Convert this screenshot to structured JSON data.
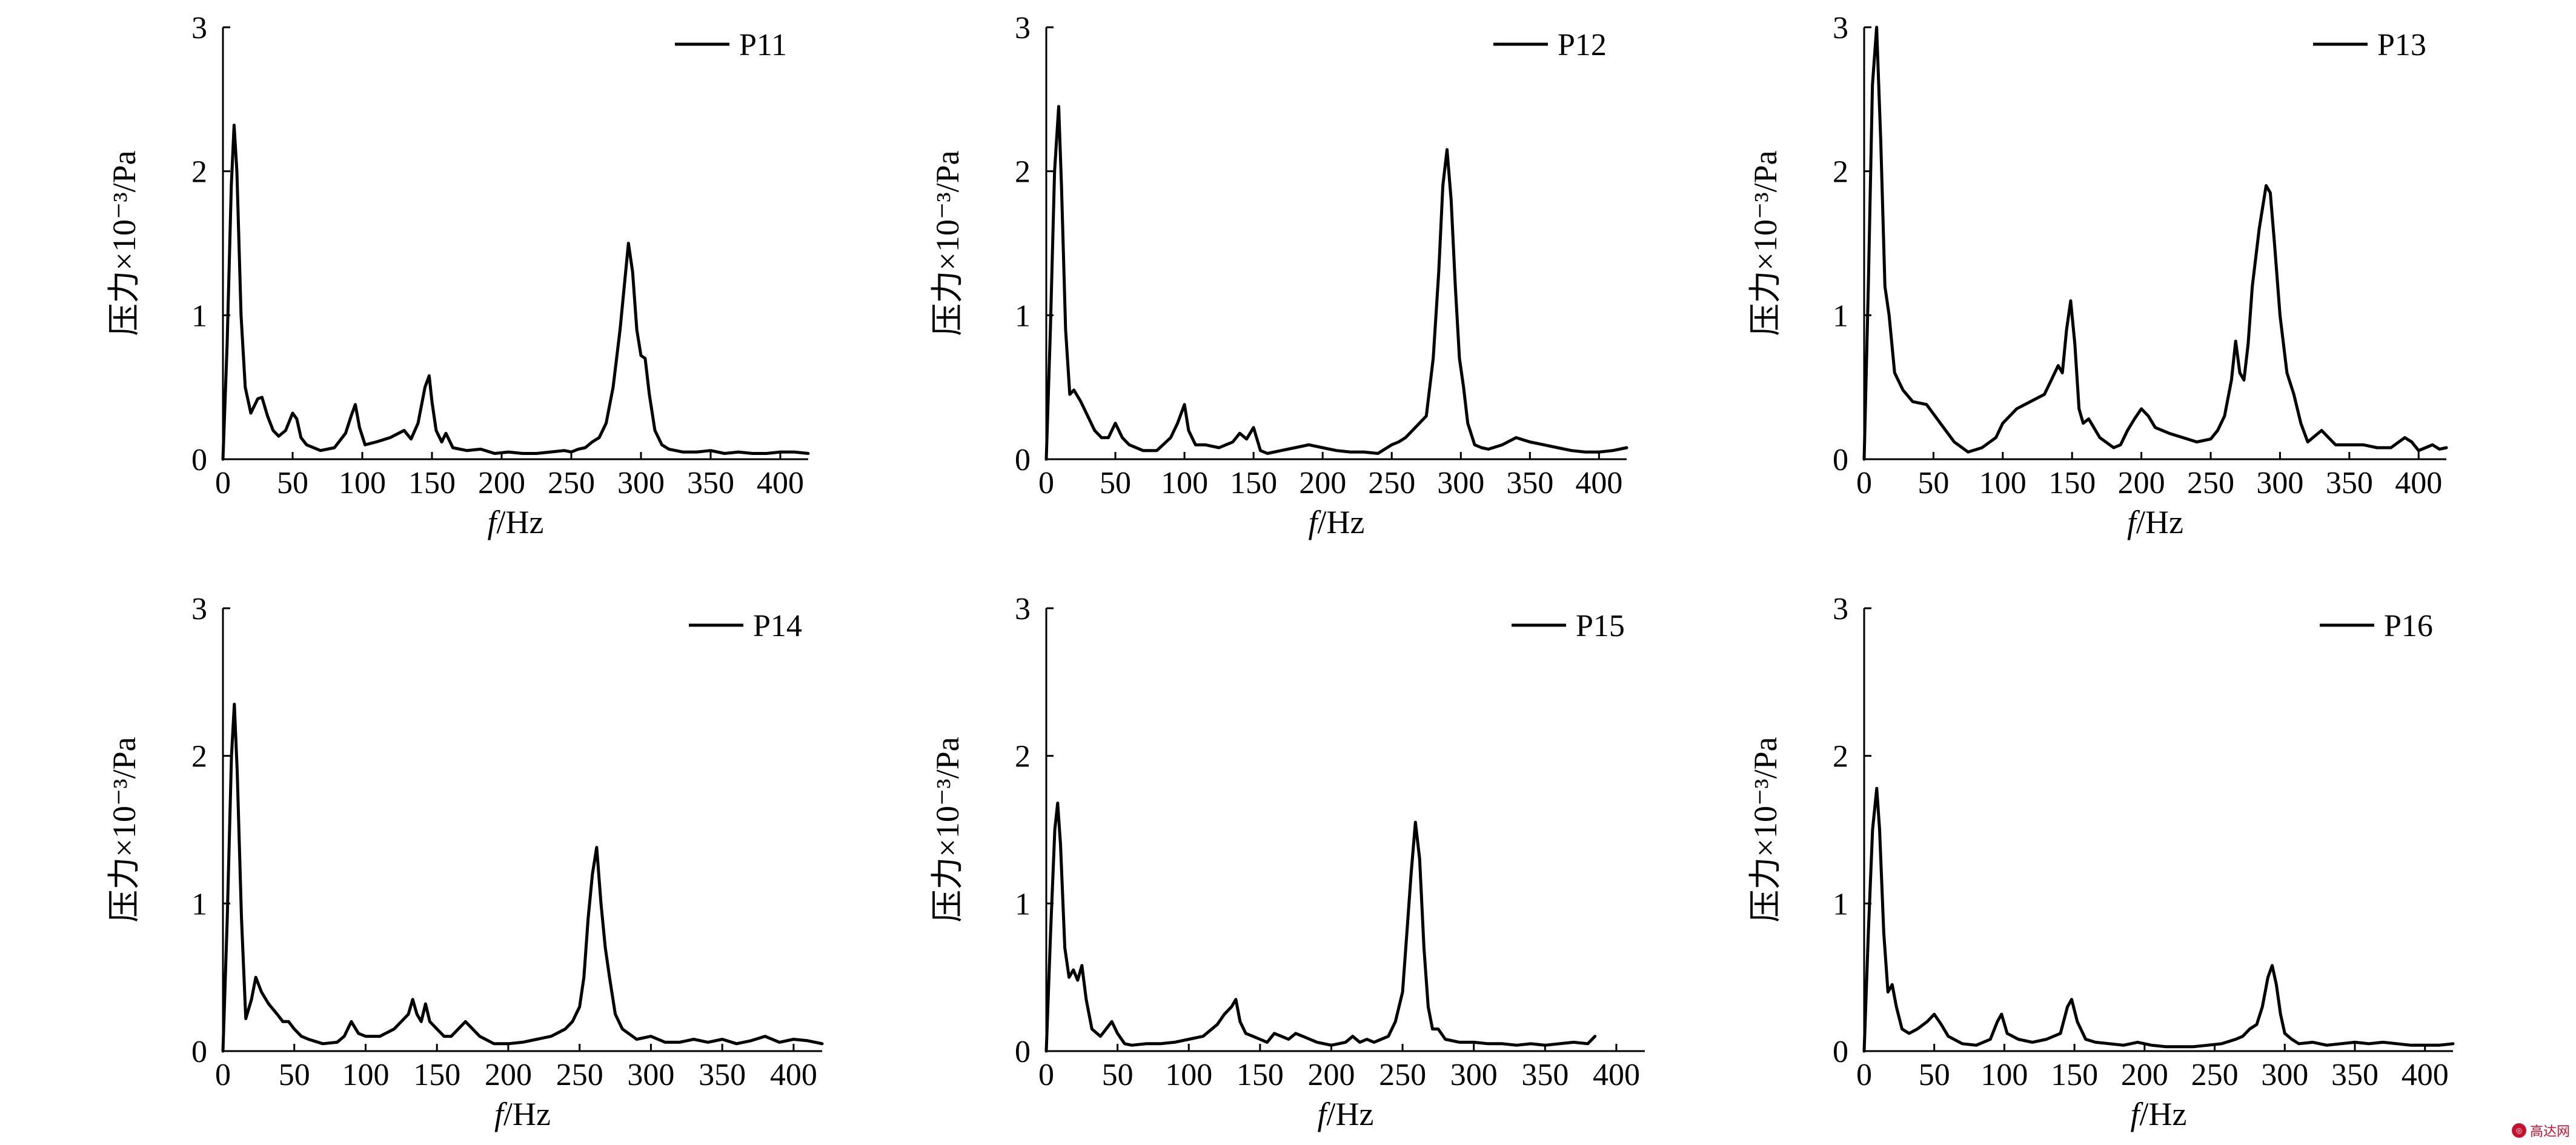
{
  "chart_data": [
    {
      "type": "line",
      "legend": "P11",
      "xlabel_italic": "f",
      "xlabel_rest": "/Hz",
      "ylabel": "压力×10⁻³/Pa",
      "xlim": [
        0,
        420
      ],
      "ylim": [
        0,
        3
      ],
      "xticks": [
        0,
        50,
        100,
        150,
        200,
        250,
        300,
        350,
        400
      ],
      "yticks": [
        0,
        1,
        2,
        3
      ],
      "series": [
        {
          "x": [
            0,
            3,
            6,
            8,
            10,
            13,
            16,
            20,
            25,
            28,
            32,
            36,
            40,
            45,
            50,
            53,
            56,
            60,
            70,
            80,
            88,
            92,
            95,
            98,
            102,
            110,
            120,
            130,
            135,
            140,
            145,
            148,
            150,
            153,
            157,
            160,
            165,
            175,
            185,
            195,
            205,
            215,
            225,
            235,
            245,
            250,
            255,
            260,
            265,
            270,
            275,
            280,
            285,
            288,
            291,
            294,
            297,
            300,
            303,
            306,
            310,
            315,
            320,
            330,
            340,
            350,
            360,
            370,
            380,
            390,
            400,
            410,
            420
          ],
          "y": [
            0,
            0.8,
            1.9,
            2.32,
            2.0,
            1.0,
            0.5,
            0.32,
            0.42,
            0.43,
            0.3,
            0.2,
            0.16,
            0.2,
            0.32,
            0.28,
            0.15,
            0.1,
            0.06,
            0.08,
            0.18,
            0.3,
            0.38,
            0.22,
            0.1,
            0.12,
            0.15,
            0.2,
            0.14,
            0.25,
            0.5,
            0.58,
            0.4,
            0.2,
            0.12,
            0.18,
            0.08,
            0.06,
            0.07,
            0.04,
            0.05,
            0.04,
            0.04,
            0.05,
            0.06,
            0.05,
            0.07,
            0.08,
            0.12,
            0.15,
            0.25,
            0.5,
            0.9,
            1.2,
            1.5,
            1.3,
            0.9,
            0.72,
            0.7,
            0.45,
            0.2,
            0.1,
            0.07,
            0.05,
            0.05,
            0.06,
            0.04,
            0.05,
            0.04,
            0.04,
            0.05,
            0.05,
            0.04
          ]
        }
      ]
    },
    {
      "type": "line",
      "legend": "P12",
      "xlabel_italic": "f",
      "xlabel_rest": "/Hz",
      "ylabel": "压力×10⁻³/Pa",
      "xlim": [
        0,
        420
      ],
      "ylim": [
        0,
        3
      ],
      "xticks": [
        0,
        50,
        100,
        150,
        200,
        250,
        300,
        350,
        400
      ],
      "yticks": [
        0,
        1,
        2,
        3
      ],
      "series": [
        {
          "x": [
            0,
            3,
            6,
            9,
            11,
            14,
            17,
            20,
            25,
            30,
            35,
            40,
            45,
            50,
            55,
            60,
            70,
            80,
            90,
            95,
            100,
            103,
            108,
            115,
            125,
            135,
            140,
            145,
            150,
            155,
            160,
            170,
            180,
            190,
            200,
            210,
            220,
            230,
            240,
            250,
            255,
            260,
            265,
            270,
            275,
            280,
            284,
            287,
            290,
            293,
            296,
            299,
            302,
            305,
            310,
            315,
            320,
            330,
            340,
            350,
            360,
            370,
            380,
            390,
            400,
            410,
            420
          ],
          "y": [
            0,
            0.9,
            2.0,
            2.45,
            1.9,
            0.9,
            0.45,
            0.48,
            0.4,
            0.3,
            0.2,
            0.15,
            0.15,
            0.25,
            0.15,
            0.1,
            0.06,
            0.06,
            0.15,
            0.25,
            0.38,
            0.2,
            0.1,
            0.1,
            0.08,
            0.12,
            0.18,
            0.14,
            0.22,
            0.06,
            0.04,
            0.06,
            0.08,
            0.1,
            0.08,
            0.06,
            0.05,
            0.05,
            0.04,
            0.1,
            0.12,
            0.15,
            0.2,
            0.25,
            0.3,
            0.7,
            1.3,
            1.9,
            2.15,
            1.8,
            1.2,
            0.7,
            0.5,
            0.25,
            0.1,
            0.08,
            0.07,
            0.1,
            0.15,
            0.12,
            0.1,
            0.08,
            0.06,
            0.05,
            0.05,
            0.06,
            0.08
          ]
        }
      ]
    },
    {
      "type": "line",
      "legend": "P13",
      "xlabel_italic": "f",
      "xlabel_rest": "/Hz",
      "ylabel": "压力×10⁻³/Pa",
      "xlim": [
        0,
        420
      ],
      "ylim": [
        0,
        3
      ],
      "xticks": [
        0,
        50,
        100,
        150,
        200,
        250,
        300,
        350,
        400
      ],
      "yticks": [
        0,
        1,
        2,
        3
      ],
      "series": [
        {
          "x": [
            0,
            3,
            6,
            9,
            12,
            15,
            18,
            22,
            28,
            35,
            45,
            55,
            65,
            75,
            85,
            95,
            100,
            105,
            110,
            120,
            130,
            135,
            140,
            143,
            146,
            149,
            152,
            155,
            158,
            162,
            170,
            180,
            185,
            190,
            195,
            200,
            205,
            210,
            220,
            230,
            240,
            250,
            255,
            260,
            265,
            268,
            271,
            274,
            277,
            280,
            285,
            290,
            293,
            296,
            300,
            305,
            310,
            315,
            320,
            330,
            340,
            350,
            360,
            370,
            380,
            390,
            395,
            400,
            405,
            410,
            415,
            420
          ],
          "y": [
            0,
            1.2,
            2.6,
            3.0,
            2.2,
            1.2,
            1.0,
            0.6,
            0.48,
            0.4,
            0.38,
            0.25,
            0.12,
            0.05,
            0.08,
            0.15,
            0.25,
            0.3,
            0.35,
            0.4,
            0.45,
            0.55,
            0.65,
            0.6,
            0.9,
            1.1,
            0.8,
            0.35,
            0.25,
            0.28,
            0.15,
            0.08,
            0.1,
            0.2,
            0.28,
            0.35,
            0.3,
            0.22,
            0.18,
            0.15,
            0.12,
            0.14,
            0.2,
            0.3,
            0.55,
            0.82,
            0.6,
            0.55,
            0.8,
            1.2,
            1.6,
            1.9,
            1.85,
            1.5,
            1.0,
            0.6,
            0.45,
            0.25,
            0.12,
            0.2,
            0.1,
            0.1,
            0.1,
            0.08,
            0.08,
            0.15,
            0.12,
            0.06,
            0.08,
            0.1,
            0.07,
            0.08
          ]
        }
      ]
    },
    {
      "type": "line",
      "legend": "P14",
      "xlabel_italic": "f",
      "xlabel_rest": "/Hz",
      "ylabel": "压力×10⁻³/Pa",
      "xlim": [
        0,
        420
      ],
      "ylim": [
        0,
        3
      ],
      "xticks": [
        0,
        50,
        100,
        150,
        200,
        250,
        300,
        350,
        400
      ],
      "yticks": [
        0,
        1,
        2,
        3
      ],
      "series": [
        {
          "x": [
            0,
            3,
            6,
            8,
            10,
            13,
            16,
            20,
            23,
            27,
            32,
            38,
            42,
            46,
            50,
            55,
            60,
            70,
            80,
            85,
            90,
            95,
            100,
            110,
            120,
            125,
            130,
            133,
            136,
            139,
            142,
            145,
            150,
            155,
            160,
            165,
            170,
            175,
            180,
            190,
            200,
            210,
            220,
            230,
            240,
            245,
            250,
            253,
            256,
            259,
            262,
            265,
            268,
            271,
            275,
            280,
            290,
            300,
            310,
            320,
            330,
            340,
            350,
            360,
            370,
            380,
            390,
            400,
            410,
            420
          ],
          "y": [
            0,
            0.9,
            2.0,
            2.35,
            1.9,
            0.9,
            0.22,
            0.35,
            0.5,
            0.4,
            0.32,
            0.25,
            0.2,
            0.2,
            0.15,
            0.1,
            0.08,
            0.05,
            0.06,
            0.1,
            0.2,
            0.12,
            0.1,
            0.1,
            0.15,
            0.2,
            0.25,
            0.35,
            0.25,
            0.2,
            0.32,
            0.2,
            0.15,
            0.1,
            0.1,
            0.15,
            0.2,
            0.15,
            0.1,
            0.05,
            0.05,
            0.06,
            0.08,
            0.1,
            0.15,
            0.2,
            0.3,
            0.5,
            0.9,
            1.2,
            1.38,
            1.0,
            0.7,
            0.5,
            0.25,
            0.15,
            0.08,
            0.1,
            0.06,
            0.06,
            0.08,
            0.06,
            0.08,
            0.05,
            0.07,
            0.1,
            0.06,
            0.08,
            0.07,
            0.05
          ]
        }
      ]
    },
    {
      "type": "line",
      "legend": "P15",
      "xlabel_italic": "f",
      "xlabel_rest": "/Hz",
      "ylabel": "压力×10⁻³/Pa",
      "xlim": [
        0,
        420
      ],
      "ylim": [
        0,
        3
      ],
      "xticks": [
        0,
        50,
        100,
        150,
        200,
        250,
        300,
        350,
        400
      ],
      "yticks": [
        0,
        1,
        2,
        3
      ],
      "series": [
        {
          "x": [
            0,
            3,
            6,
            8,
            10,
            13,
            16,
            19,
            22,
            25,
            28,
            32,
            38,
            42,
            46,
            50,
            55,
            60,
            70,
            80,
            90,
            100,
            110,
            120,
            125,
            130,
            133,
            136,
            140,
            145,
            150,
            155,
            160,
            165,
            170,
            175,
            180,
            190,
            200,
            210,
            215,
            220,
            225,
            230,
            240,
            245,
            250,
            253,
            256,
            259,
            262,
            265,
            268,
            271,
            275,
            280,
            290,
            300,
            310,
            320,
            330,
            340,
            350,
            360,
            370,
            380,
            385
          ],
          "y": [
            0,
            0.8,
            1.5,
            1.68,
            1.4,
            0.7,
            0.5,
            0.55,
            0.48,
            0.58,
            0.35,
            0.15,
            0.1,
            0.15,
            0.2,
            0.12,
            0.05,
            0.04,
            0.05,
            0.05,
            0.06,
            0.08,
            0.1,
            0.18,
            0.25,
            0.3,
            0.35,
            0.2,
            0.12,
            0.1,
            0.08,
            0.06,
            0.12,
            0.1,
            0.08,
            0.12,
            0.1,
            0.06,
            0.04,
            0.06,
            0.1,
            0.06,
            0.08,
            0.06,
            0.1,
            0.2,
            0.4,
            0.8,
            1.2,
            1.55,
            1.3,
            0.7,
            0.3,
            0.15,
            0.15,
            0.08,
            0.06,
            0.06,
            0.05,
            0.05,
            0.04,
            0.05,
            0.04,
            0.05,
            0.06,
            0.05,
            0.1
          ]
        }
      ]
    },
    {
      "type": "line",
      "legend": "P16",
      "xlabel_italic": "f",
      "xlabel_rest": "/Hz",
      "ylabel": "压力×10⁻³/Pa",
      "xlim": [
        0,
        420
      ],
      "ylim": [
        0,
        3
      ],
      "xticks": [
        0,
        50,
        100,
        150,
        200,
        250,
        300,
        350,
        400
      ],
      "yticks": [
        0,
        1,
        2,
        3
      ],
      "series": [
        {
          "x": [
            0,
            3,
            6,
            9,
            11,
            14,
            17,
            20,
            23,
            27,
            32,
            38,
            45,
            50,
            55,
            60,
            70,
            80,
            90,
            95,
            98,
            102,
            110,
            120,
            130,
            140,
            145,
            148,
            152,
            158,
            165,
            175,
            185,
            195,
            205,
            215,
            225,
            235,
            245,
            255,
            265,
            270,
            275,
            280,
            284,
            288,
            291,
            294,
            297,
            300,
            305,
            310,
            320,
            330,
            340,
            350,
            360,
            370,
            380,
            390,
            400,
            410,
            420
          ],
          "y": [
            0,
            0.8,
            1.5,
            1.78,
            1.5,
            0.8,
            0.4,
            0.45,
            0.3,
            0.15,
            0.12,
            0.15,
            0.2,
            0.25,
            0.18,
            0.1,
            0.05,
            0.04,
            0.08,
            0.2,
            0.25,
            0.12,
            0.08,
            0.06,
            0.08,
            0.12,
            0.3,
            0.35,
            0.2,
            0.08,
            0.06,
            0.05,
            0.04,
            0.06,
            0.04,
            0.03,
            0.03,
            0.03,
            0.04,
            0.05,
            0.08,
            0.1,
            0.15,
            0.18,
            0.3,
            0.5,
            0.58,
            0.45,
            0.25,
            0.12,
            0.08,
            0.05,
            0.06,
            0.04,
            0.05,
            0.06,
            0.05,
            0.06,
            0.05,
            0.04,
            0.04,
            0.04,
            0.05
          ]
        }
      ]
    }
  ],
  "watermark": {
    "text": "高达网",
    "icon": "logo-badge"
  }
}
